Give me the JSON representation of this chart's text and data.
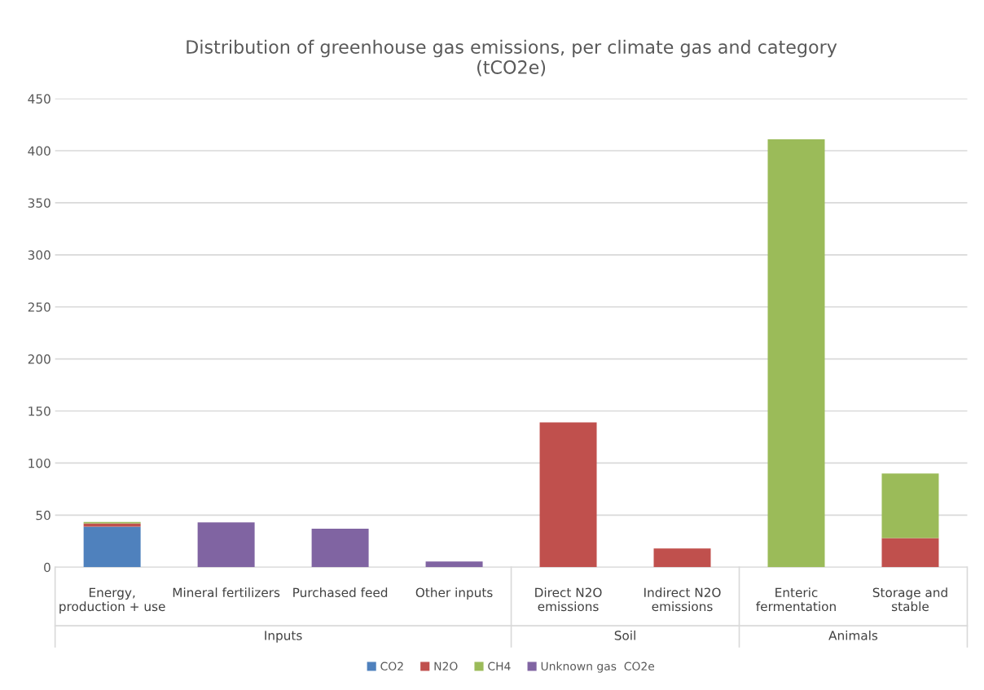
{
  "chart_data": {
    "type": "bar",
    "stacked": true,
    "title": "Distribution of greenhouse gas emissions, per climate gas and category\n(tCO2e)",
    "categories": [
      "Energy,\nproduction + use",
      "Mineral fertilizers",
      "Purchased feed",
      "Other inputs",
      "Direct N2O\nemissions",
      "Indirect N2O\nemissions",
      "Enteric\nfermentation",
      "Storage and\nstable"
    ],
    "series": [
      {
        "name": "CO2",
        "color": "#4f81bd",
        "values": [
          39,
          null,
          null,
          null,
          null,
          null,
          null,
          null
        ]
      },
      {
        "name": "N2O",
        "color": "#c0504d",
        "values": [
          3,
          null,
          null,
          null,
          139,
          18,
          null,
          28
        ]
      },
      {
        "name": "CH4",
        "color": "#9bbb59",
        "values": [
          1.5,
          null,
          null,
          null,
          null,
          null,
          411,
          62
        ]
      },
      {
        "name": "Unknown gas  CO2e",
        "color": "#8064a2",
        "values": [
          null,
          43,
          37,
          5.5,
          null,
          null,
          null,
          null
        ]
      }
    ],
    "annotations": [
      "Inputs",
      "Soil",
      "Animals"
    ],
    "ylim": [
      0,
      450
    ],
    "yticks": [
      0,
      50,
      100,
      150,
      200,
      250,
      300,
      350,
      400,
      450
    ],
    "grid": "y",
    "legend": "bottom"
  }
}
